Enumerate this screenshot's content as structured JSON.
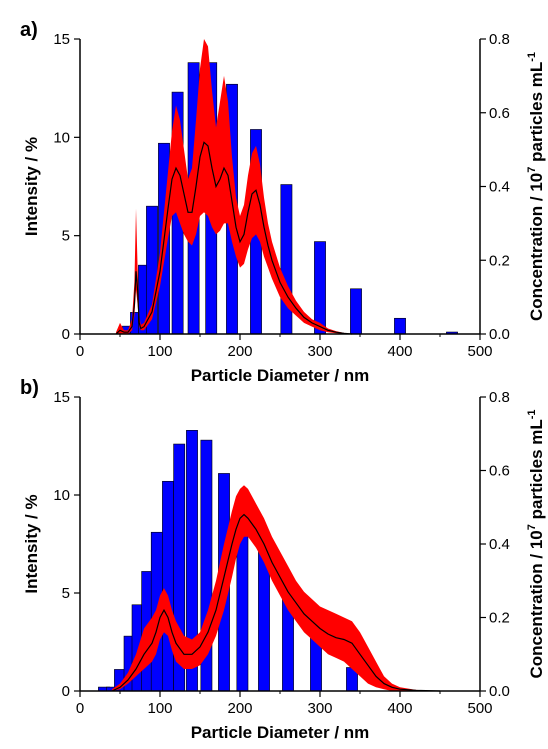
{
  "colors": {
    "bar": "#0000ff",
    "bar_outline": "#000000",
    "band": "#ff0000",
    "mean_line": "#000000",
    "axis": "#000000"
  },
  "chart_data": [
    {
      "panel_label": "a)",
      "type": "bar",
      "xlabel": "Particle Diameter / nm",
      "ylabel": "Intensity / %",
      "y2label_parts": [
        "Concentration / 10",
        "7",
        " particles mL",
        "-1"
      ],
      "xlim": [
        0,
        500
      ],
      "ylim": [
        0,
        15
      ],
      "y2lim": [
        0,
        0.8
      ],
      "xticks": [
        0,
        100,
        200,
        300,
        400,
        500
      ],
      "yticks": [
        0,
        5,
        10,
        15
      ],
      "y2ticks": [
        "0.0",
        "0.2",
        "0.4",
        "0.6",
        "0.8"
      ],
      "grid": false,
      "legend": "none",
      "bar_width": 14,
      "intensity_bars": [
        {
          "x": 60,
          "y": 0.4
        },
        {
          "x": 70,
          "y": 1.1
        },
        {
          "x": 80,
          "y": 3.5
        },
        {
          "x": 90,
          "y": 6.5
        },
        {
          "x": 105,
          "y": 9.7
        },
        {
          "x": 122,
          "y": 12.3
        },
        {
          "x": 142,
          "y": 13.8
        },
        {
          "x": 164,
          "y": 13.8
        },
        {
          "x": 190,
          "y": 12.7
        },
        {
          "x": 220,
          "y": 10.4
        },
        {
          "x": 258,
          "y": 7.6
        },
        {
          "x": 300,
          "y": 4.7
        },
        {
          "x": 345,
          "y": 2.3
        },
        {
          "x": 400,
          "y": 0.8
        },
        {
          "x": 465,
          "y": 0.1
        }
      ],
      "concentration_series": {
        "x": [
          45,
          50,
          55,
          60,
          65,
          68,
          70,
          72,
          74,
          76,
          80,
          90,
          100,
          110,
          115,
          120,
          125,
          130,
          135,
          140,
          145,
          150,
          155,
          160,
          165,
          170,
          175,
          180,
          185,
          190,
          195,
          200,
          205,
          210,
          215,
          220,
          225,
          230,
          235,
          240,
          250,
          260,
          270,
          280,
          290,
          300,
          310,
          320,
          330,
          340
        ],
        "mean": [
          0.0,
          0.01,
          0.005,
          0.005,
          0.02,
          0.08,
          0.17,
          0.12,
          0.03,
          0.015,
          0.02,
          0.06,
          0.17,
          0.34,
          0.42,
          0.45,
          0.43,
          0.38,
          0.33,
          0.33,
          0.4,
          0.48,
          0.52,
          0.51,
          0.45,
          0.4,
          0.42,
          0.45,
          0.43,
          0.36,
          0.29,
          0.25,
          0.27,
          0.33,
          0.38,
          0.39,
          0.35,
          0.29,
          0.24,
          0.2,
          0.14,
          0.1,
          0.07,
          0.045,
          0.03,
          0.02,
          0.01,
          0.005,
          0.002,
          0.0
        ],
        "lower": [
          0.0,
          0.0,
          0.0,
          0.0,
          0.01,
          0.05,
          0.12,
          0.08,
          0.02,
          0.01,
          0.01,
          0.04,
          0.13,
          0.26,
          0.32,
          0.33,
          0.3,
          0.27,
          0.25,
          0.24,
          0.27,
          0.32,
          0.33,
          0.32,
          0.29,
          0.27,
          0.28,
          0.3,
          0.3,
          0.25,
          0.21,
          0.18,
          0.19,
          0.23,
          0.26,
          0.27,
          0.25,
          0.21,
          0.18,
          0.15,
          0.1,
          0.07,
          0.05,
          0.03,
          0.02,
          0.01,
          0.005,
          0.002,
          0.0,
          0.0
        ],
        "upper": [
          0.005,
          0.03,
          0.01,
          0.01,
          0.04,
          0.14,
          0.34,
          0.18,
          0.05,
          0.025,
          0.03,
          0.08,
          0.22,
          0.44,
          0.55,
          0.62,
          0.58,
          0.5,
          0.42,
          0.45,
          0.58,
          0.72,
          0.8,
          0.78,
          0.66,
          0.56,
          0.63,
          0.7,
          0.63,
          0.48,
          0.37,
          0.32,
          0.35,
          0.43,
          0.49,
          0.51,
          0.46,
          0.37,
          0.3,
          0.25,
          0.18,
          0.13,
          0.09,
          0.06,
          0.04,
          0.03,
          0.015,
          0.008,
          0.003,
          0.0
        ]
      }
    },
    {
      "panel_label": "b)",
      "type": "bar",
      "xlabel": "Particle Diameter / nm",
      "ylabel": "Intensity / %",
      "y2label_parts": [
        "Concentration / 10",
        "7",
        " particles mL",
        "-1"
      ],
      "xlim": [
        0,
        500
      ],
      "ylim": [
        0,
        15
      ],
      "y2lim": [
        0,
        0.8
      ],
      "xticks": [
        0,
        100,
        200,
        300,
        400,
        500
      ],
      "yticks": [
        0,
        5,
        10,
        15
      ],
      "y2ticks": [
        "0.0",
        "0.2",
        "0.4",
        "0.6",
        "0.8"
      ],
      "grid": false,
      "legend": "none",
      "bar_width": 14,
      "intensity_bars": [
        {
          "x": 30,
          "y": 0.2
        },
        {
          "x": 40,
          "y": 0.2
        },
        {
          "x": 50,
          "y": 1.1
        },
        {
          "x": 62,
          "y": 2.8
        },
        {
          "x": 72,
          "y": 4.4
        },
        {
          "x": 84,
          "y": 6.1
        },
        {
          "x": 96,
          "y": 8.1
        },
        {
          "x": 110,
          "y": 10.7
        },
        {
          "x": 124,
          "y": 12.6
        },
        {
          "x": 140,
          "y": 13.3
        },
        {
          "x": 158,
          "y": 12.8
        },
        {
          "x": 180,
          "y": 11.1
        },
        {
          "x": 203,
          "y": 9.1
        },
        {
          "x": 230,
          "y": 7.6
        },
        {
          "x": 260,
          "y": 5.8
        },
        {
          "x": 295,
          "y": 3.8
        },
        {
          "x": 340,
          "y": 1.2
        },
        {
          "x": 395,
          "y": 0.1
        }
      ],
      "concentration_series": {
        "x": [
          40,
          50,
          60,
          70,
          80,
          90,
          95,
          100,
          105,
          110,
          115,
          120,
          130,
          140,
          150,
          160,
          170,
          180,
          190,
          195,
          200,
          205,
          210,
          220,
          230,
          240,
          250,
          260,
          270,
          280,
          290,
          300,
          310,
          320,
          330,
          340,
          350,
          360,
          370,
          380,
          390,
          400,
          420,
          450
        ],
        "mean": [
          0.0,
          0.01,
          0.03,
          0.06,
          0.1,
          0.13,
          0.16,
          0.2,
          0.22,
          0.2,
          0.16,
          0.13,
          0.1,
          0.1,
          0.12,
          0.16,
          0.22,
          0.31,
          0.4,
          0.44,
          0.47,
          0.48,
          0.47,
          0.44,
          0.4,
          0.35,
          0.31,
          0.27,
          0.24,
          0.21,
          0.19,
          0.17,
          0.155,
          0.145,
          0.14,
          0.13,
          0.1,
          0.07,
          0.04,
          0.02,
          0.01,
          0.005,
          0.002,
          0.0
        ],
        "lower": [
          0.0,
          0.005,
          0.02,
          0.04,
          0.06,
          0.08,
          0.1,
          0.14,
          0.16,
          0.15,
          0.11,
          0.08,
          0.06,
          0.06,
          0.07,
          0.1,
          0.15,
          0.22,
          0.31,
          0.36,
          0.4,
          0.42,
          0.42,
          0.39,
          0.35,
          0.3,
          0.26,
          0.22,
          0.19,
          0.16,
          0.14,
          0.12,
          0.1,
          0.09,
          0.08,
          0.06,
          0.04,
          0.02,
          0.01,
          0.005,
          0.0,
          0.0,
          0.0,
          0.0
        ],
        "upper": [
          0.005,
          0.02,
          0.05,
          0.1,
          0.17,
          0.2,
          0.22,
          0.26,
          0.28,
          0.26,
          0.22,
          0.19,
          0.15,
          0.14,
          0.16,
          0.22,
          0.3,
          0.4,
          0.49,
          0.53,
          0.55,
          0.56,
          0.55,
          0.51,
          0.47,
          0.42,
          0.38,
          0.34,
          0.3,
          0.27,
          0.25,
          0.23,
          0.22,
          0.21,
          0.2,
          0.19,
          0.16,
          0.12,
          0.08,
          0.04,
          0.02,
          0.01,
          0.003,
          0.0
        ]
      }
    }
  ]
}
